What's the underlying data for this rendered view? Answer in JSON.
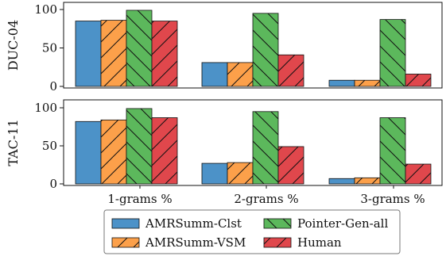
{
  "chart_data": [
    {
      "type": "bar",
      "ylabel": "DUC-04",
      "ylim": [
        0,
        100
      ],
      "yticks": [
        0,
        50,
        100
      ],
      "categories": [
        "1-grams %",
        "2-grams %",
        "3-grams %"
      ],
      "show_xticklabels": false,
      "series": [
        {
          "name": "AMRSumm-Clst",
          "values": [
            85,
            31,
            8
          ]
        },
        {
          "name": "AMRSumm-VSM",
          "values": [
            86,
            31,
            8
          ]
        },
        {
          "name": "Pointer-Gen-all",
          "values": [
            99,
            95,
            87
          ]
        },
        {
          "name": "Human",
          "values": [
            85,
            41,
            16
          ]
        }
      ]
    },
    {
      "type": "bar",
      "ylabel": "TAC-11",
      "ylim": [
        0,
        100
      ],
      "yticks": [
        0,
        50,
        100
      ],
      "categories": [
        "1-grams %",
        "2-grams %",
        "3-grams %"
      ],
      "show_xticklabels": true,
      "series": [
        {
          "name": "AMRSumm-Clst",
          "values": [
            82,
            27,
            7
          ]
        },
        {
          "name": "AMRSumm-VSM",
          "values": [
            84,
            28,
            8
          ]
        },
        {
          "name": "Pointer-Gen-all",
          "values": [
            99,
            95,
            87
          ]
        },
        {
          "name": "Human",
          "values": [
            87,
            49,
            26
          ]
        }
      ]
    }
  ],
  "legend": {
    "placement": "bottom-center",
    "items": [
      {
        "name": "AMRSumm-Clst",
        "color": "#4c92c8",
        "hatch": "none"
      },
      {
        "name": "AMRSumm-VSM",
        "color": "#fca04a",
        "hatch": "forward-slash"
      },
      {
        "name": "Pointer-Gen-all",
        "color": "#5cb85c",
        "hatch": "back-slash"
      },
      {
        "name": "Human",
        "color": "#e0474c",
        "hatch": "forward-slash"
      }
    ]
  }
}
